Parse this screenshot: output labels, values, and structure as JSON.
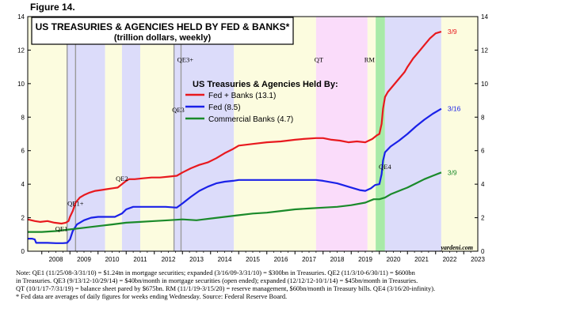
{
  "figure_label": "Figure 14.",
  "chart_data": {
    "type": "line",
    "title": "US TREASURIES & AGENCIES HELD BY FED & BANKS*",
    "subtitle": "(trillion dollars, weekly)",
    "legend_title": "US Treasuries & Agencies Held By:",
    "legend_placement": "upper-middle",
    "x_range": [
      2007.5,
      2023.5
    ],
    "ylim": [
      0,
      14
    ],
    "y_ticks": [
      0,
      2,
      4,
      6,
      8,
      10,
      12,
      14
    ],
    "x_tick_labels": [
      "2008",
      "2009",
      "2010",
      "2011",
      "2012",
      "2013",
      "2014",
      "2015",
      "2016",
      "2017",
      "2018",
      "2019",
      "2020",
      "2021",
      "2022",
      "2023"
    ],
    "grid": false,
    "watermark": "yardeni.com",
    "series": [
      {
        "name": "Fed + Banks (13.1)",
        "color": "#e8191e",
        "end_label": "3/9",
        "x": [
          2007.5,
          2007.75,
          2007.95,
          2008.2,
          2008.45,
          2008.7,
          2008.85,
          2008.95,
          2009.0,
          2009.1,
          2009.2,
          2009.35,
          2009.5,
          2009.7,
          2009.9,
          2010.1,
          2010.3,
          2010.5,
          2010.7,
          2010.85,
          2011.0,
          2011.1,
          2011.3,
          2011.6,
          2011.9,
          2012.2,
          2012.5,
          2012.8,
          2013.0,
          2013.3,
          2013.6,
          2013.9,
          2014.2,
          2014.5,
          2014.8,
          2015.0,
          2015.5,
          2016.0,
          2016.5,
          2017.0,
          2017.3,
          2017.75,
          2018.0,
          2018.3,
          2018.6,
          2018.9,
          2019.2,
          2019.5,
          2019.75,
          2019.9,
          2020.0,
          2020.08,
          2020.13,
          2020.2,
          2020.3,
          2020.5,
          2020.7,
          2020.9,
          2021.0,
          2021.2,
          2021.4,
          2021.6,
          2021.8,
          2022.0,
          2022.2
        ],
        "y": [
          1.9,
          1.8,
          1.75,
          1.8,
          1.7,
          1.65,
          1.7,
          1.8,
          2.05,
          2.4,
          2.9,
          3.2,
          3.35,
          3.5,
          3.6,
          3.65,
          3.7,
          3.75,
          3.8,
          4.0,
          4.2,
          4.3,
          4.3,
          4.35,
          4.4,
          4.4,
          4.45,
          4.5,
          4.7,
          4.95,
          5.15,
          5.3,
          5.55,
          5.85,
          6.1,
          6.3,
          6.4,
          6.5,
          6.55,
          6.65,
          6.7,
          6.75,
          6.75,
          6.65,
          6.6,
          6.5,
          6.55,
          6.5,
          6.7,
          6.9,
          7.0,
          7.6,
          8.5,
          9.2,
          9.5,
          9.9,
          10.3,
          10.7,
          11.0,
          11.5,
          11.9,
          12.3,
          12.7,
          13.0,
          13.1
        ]
      },
      {
        "name": "Fed (8.5)",
        "color": "#1a21e8",
        "end_label": "3/16",
        "x": [
          2007.5,
          2007.65,
          2007.75,
          2007.8,
          2007.95,
          2008.2,
          2008.5,
          2008.75,
          2008.9,
          2009.0,
          2009.1,
          2009.25,
          2009.5,
          2009.75,
          2010.0,
          2010.3,
          2010.6,
          2010.85,
          2011.0,
          2011.25,
          2011.6,
          2012.0,
          2012.4,
          2012.8,
          2013.0,
          2013.3,
          2013.6,
          2013.9,
          2014.2,
          2014.5,
          2014.8,
          2015.0,
          2015.5,
          2016.0,
          2016.5,
          2017.0,
          2017.5,
          2017.75,
          2018.0,
          2018.5,
          2019.0,
          2019.3,
          2019.5,
          2019.7,
          2019.85,
          2020.0,
          2020.08,
          2020.13,
          2020.2,
          2020.4,
          2020.7,
          2021.0,
          2021.3,
          2021.6,
          2021.9,
          2022.2
        ],
        "y": [
          0.75,
          0.75,
          0.7,
          0.5,
          0.5,
          0.5,
          0.48,
          0.48,
          0.5,
          0.7,
          1.2,
          1.6,
          1.85,
          2.0,
          2.05,
          2.05,
          2.05,
          2.25,
          2.5,
          2.65,
          2.65,
          2.65,
          2.65,
          2.6,
          2.85,
          3.25,
          3.6,
          3.85,
          4.05,
          4.15,
          4.2,
          4.25,
          4.25,
          4.25,
          4.25,
          4.25,
          4.25,
          4.25,
          4.2,
          4.05,
          3.8,
          3.65,
          3.6,
          3.75,
          3.95,
          4.0,
          4.6,
          5.4,
          5.9,
          6.25,
          6.6,
          7.0,
          7.45,
          7.85,
          8.2,
          8.5
        ]
      },
      {
        "name": "Commercial Banks (4.7)",
        "color": "#1a8a2a",
        "end_label": "3/9",
        "x": [
          2007.5,
          2008.0,
          2008.5,
          2009.0,
          2009.5,
          2010.0,
          2010.5,
          2011.0,
          2011.5,
          2012.0,
          2012.5,
          2013.0,
          2013.5,
          2014.0,
          2014.5,
          2015.0,
          2015.5,
          2016.0,
          2016.5,
          2017.0,
          2017.5,
          2018.0,
          2018.5,
          2019.0,
          2019.5,
          2019.8,
          2020.0,
          2020.2,
          2020.4,
          2020.7,
          2021.0,
          2021.3,
          2021.6,
          2021.9,
          2022.2
        ],
        "y": [
          1.15,
          1.15,
          1.2,
          1.3,
          1.4,
          1.5,
          1.6,
          1.7,
          1.75,
          1.8,
          1.85,
          1.9,
          1.85,
          1.95,
          2.05,
          2.15,
          2.25,
          2.3,
          2.4,
          2.5,
          2.55,
          2.6,
          2.65,
          2.75,
          2.9,
          3.1,
          3.1,
          3.2,
          3.4,
          3.6,
          3.8,
          4.05,
          4.3,
          4.5,
          4.7
        ]
      }
    ],
    "shaded_periods": [
      {
        "label": "QE1",
        "start": 2008.9,
        "end": 2010.25,
        "color": "#dcdcfa"
      },
      {
        "label": "",
        "start": 2010.25,
        "end": 2010.85,
        "color": "#fcfcdf"
      },
      {
        "label": "QE2",
        "start": 2010.85,
        "end": 2011.5,
        "color": "#dcdcfa"
      },
      {
        "label": "",
        "start": 2011.5,
        "end": 2012.7,
        "color": "#fcfcdf"
      },
      {
        "label": "QE3",
        "start": 2012.7,
        "end": 2014.83,
        "color": "#dcdcfa"
      },
      {
        "label": "",
        "start": 2014.83,
        "end": 2017.75,
        "color": "#fcfcdf"
      },
      {
        "label": "QT",
        "start": 2017.75,
        "end": 2019.58,
        "color": "#fadcfa"
      },
      {
        "label": "",
        "start": 2019.58,
        "end": 2019.87,
        "color": "#fcfcdf"
      },
      {
        "label": "RM",
        "start": 2019.87,
        "end": 2020.2,
        "color": "#a8eaa8"
      },
      {
        "label": "QE4",
        "start": 2020.2,
        "end": 2022.2,
        "color": "#dcdcfa"
      },
      {
        "label": "",
        "start": 2022.2,
        "end": 2023.5,
        "color": "#fcfcdf"
      }
    ],
    "vertical_markers": [
      2008.9,
      2009.2,
      2012.7,
      2012.95
    ],
    "annotations": [
      {
        "text": "QE1",
        "x": 2008.7,
        "y": 1.2
      },
      {
        "text": "QE1+",
        "x": 2009.2,
        "y": 2.7
      },
      {
        "text": "QE2",
        "x": 2010.85,
        "y": 4.2
      },
      {
        "text": "QE3+",
        "x": 2013.1,
        "y": 11.3
      },
      {
        "text": "QE3",
        "x": 2012.85,
        "y": 8.3
      },
      {
        "text": "QT",
        "x": 2017.85,
        "y": 11.3
      },
      {
        "text": "RM",
        "x": 2019.65,
        "y": 11.3
      },
      {
        "text": "QE4",
        "x": 2020.2,
        "y": 4.9
      }
    ]
  },
  "notes": [
    "Note: QE1 (11/25/08-3/31/10) = $1.24tn in mortgage securities; expanded (3/16/09-3/31/10) = $300bn in Treasuries. QE2 (11/3/10-6/30/11) = $600bn",
    "in Treasuries. QE3 (9/13/12-10/29/14) = $40bn/month in mortgage securities (open ended); expanded (12/12/12-10/1/14) = $45bn/month in Treasuries.",
    "QT (10/1/17-7/31/19) = balance sheet pared by $675bn. RM (11/1/19-3/15/20) = reserve management, $60bn/month in Treasury bills. QE4 (3/16/20-infinity).",
    "*  Fed data are averages of daily figures for weeks ending Wednesday. Source: Federal Reserve Board."
  ]
}
